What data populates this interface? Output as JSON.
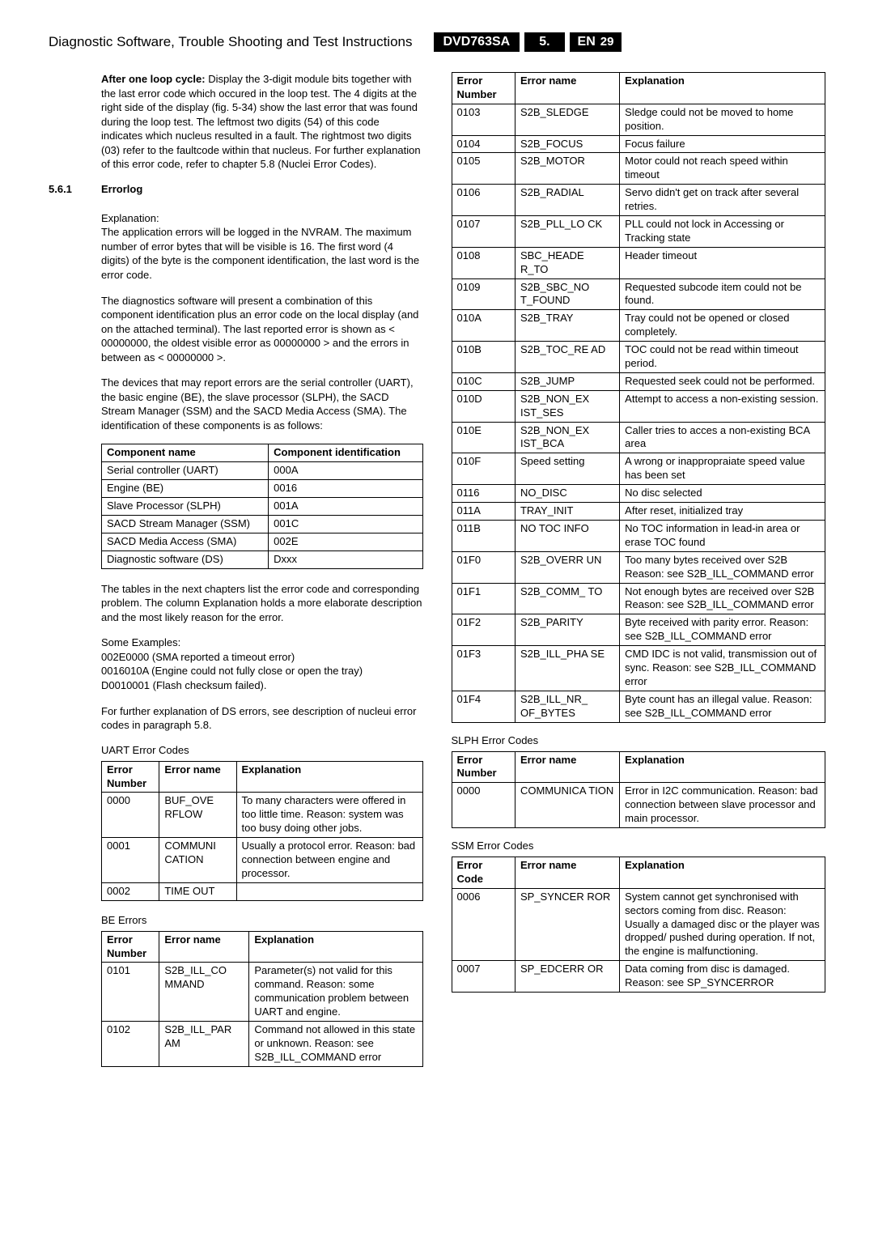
{
  "header": {
    "title": "Diagnostic Software, Trouble Shooting and Test Instructions",
    "model": "DVD763SA",
    "section": "5.",
    "lang": "EN",
    "page": "29"
  },
  "intro": {
    "lead": "After one loop cycle:",
    "text": " Display the 3-digit module bits together with the last error code which occured in the loop test. The 4 digits at the right side of the display (fig. 5-34) show the last error that was found during the loop test. The leftmost two digits (54) of this code indicates which nucleus resulted in a fault. The rightmost two digits (03) refer to the faultcode within that nucleus. For further explanation of this error code, refer to chapter 5.8 (Nuclei Error Codes)."
  },
  "errorlog": {
    "num": "5.6.1",
    "title": "Errorlog",
    "p1_label": "Explanation:",
    "p1": "The application errors will be logged in the NVRAM. The maximum number of error bytes that will be visible is 16. The first word (4 digits) of the byte is the component identification, the last word is the error code.",
    "p2": "The diagnostics software will present a combination of this component identification plus an error code on the local display (and on the attached terminal). The last reported error is shown as < 00000000, the oldest visible error as 00000000 > and the errors in between as < 00000000 >.",
    "p3": "The devices that may report errors are the serial controller (UART), the basic engine (BE), the slave processor (SLPH), the SACD Stream Manager (SSM) and the SACD Media Access (SMA). The identification of these components is as follows:"
  },
  "components": {
    "columns": [
      "Component name",
      "Component identification"
    ],
    "rows": [
      [
        "Serial controller (UART)",
        "000A"
      ],
      [
        "Engine (BE)",
        "0016"
      ],
      [
        "Slave Processor (SLPH)",
        "001A"
      ],
      [
        "SACD Stream Manager (SSM)",
        "001C"
      ],
      [
        "SACD Media Access (SMA)",
        "002E"
      ],
      [
        "Diagnostic software (DS)",
        "Dxxx"
      ]
    ]
  },
  "notes": {
    "p1": "The tables in the next chapters list the error code and corresponding problem. The column  Explanation  holds a more elaborate description and the most likely reason for the error.",
    "p2_label": "Some Examples:",
    "p2a": "002E0000 (SMA reported a timeout error)",
    "p2b": "0016010A (Engine could not fully close or open the tray)",
    "p2c": "D0010001 (Flash checksum failed).",
    "p3": "For further explanation of DS errors, see description of nucleui error codes in paragraph 5.8."
  },
  "uart": {
    "caption": "UART Error Codes",
    "columns": [
      "Error Number",
      "Error name",
      "Explanation"
    ],
    "rows": [
      [
        "0000",
        "BUF_OVE RFLOW",
        "To many characters were offered in too little time. Reason: system was too busy doing other jobs."
      ],
      [
        "0001",
        "COMMUNI CATION",
        "Usually a protocol error. Reason: bad connection between engine and processor."
      ],
      [
        "0002",
        "TIME OUT",
        ""
      ]
    ]
  },
  "be": {
    "caption": "BE Errors",
    "columns": [
      "Error Number",
      "Error name",
      "Explanation"
    ],
    "rows": [
      [
        "0101",
        "S2B_ILL_CO MMAND",
        "Parameter(s) not valid for this command. Reason: some communication problem between UART and engine."
      ],
      [
        "0102",
        "S2B_ILL_PAR AM",
        "Command not allowed in this state or unknown. Reason: see S2B_ILL_COMMAND error"
      ]
    ]
  },
  "be_cont": {
    "columns": [
      "Error Number",
      "Error name",
      "Explanation"
    ],
    "rows": [
      [
        "0103",
        "S2B_SLEDGE",
        "Sledge could not be moved to home position."
      ],
      [
        "0104",
        "S2B_FOCUS",
        "Focus failure"
      ],
      [
        "0105",
        "S2B_MOTOR",
        "Motor could not reach speed within timeout"
      ],
      [
        "0106",
        "S2B_RADIAL",
        "Servo didn't get on track after several retries."
      ],
      [
        "0107",
        "S2B_PLL_LO CK",
        "PLL could not lock in Accessing or Tracking state"
      ],
      [
        "0108",
        "SBC_HEADE R_TO",
        "Header timeout"
      ],
      [
        "0109",
        "S2B_SBC_NO T_FOUND",
        "Requested subcode item could not be found."
      ],
      [
        "010A",
        "S2B_TRAY",
        "Tray could not be opened or closed completely."
      ],
      [
        "010B",
        "S2B_TOC_RE AD",
        "TOC could not be read within timeout period."
      ],
      [
        "010C",
        "S2B_JUMP",
        "Requested seek could not be performed."
      ],
      [
        "010D",
        "S2B_NON_EX IST_SES",
        "Attempt to access a non-existing session."
      ],
      [
        "010E",
        "S2B_NON_EX IST_BCA",
        "Caller tries to acces a non-existing BCA area"
      ],
      [
        "010F",
        "Speed setting",
        "A wrong or inappropraiate speed value has been set"
      ],
      [
        "0116",
        "NO_DISC",
        "No disc selected"
      ],
      [
        "011A",
        "TRAY_INIT",
        "After reset, initialized tray"
      ],
      [
        "011B",
        "NO TOC INFO",
        "No TOC information in lead-in area or erase TOC found"
      ],
      [
        "01F0",
        "S2B_OVERR UN",
        "Too many bytes received over S2B Reason: see S2B_ILL_COMMAND error"
      ],
      [
        "01F1",
        "S2B_COMM_ TO",
        "Not enough bytes are received over S2B Reason: see S2B_ILL_COMMAND error"
      ],
      [
        "01F2",
        "S2B_PARITY",
        "Byte received with parity error. Reason: see S2B_ILL_COMMAND error"
      ],
      [
        "01F3",
        "S2B_ILL_PHA SE",
        "CMD IDC is not valid, transmission out of sync. Reason: see S2B_ILL_COMMAND error"
      ],
      [
        "01F4",
        "S2B_ILL_NR_ OF_BYTES",
        "Byte count has an illegal value. Reason: see S2B_ILL_COMMAND error"
      ]
    ]
  },
  "slph": {
    "caption": "SLPH Error Codes",
    "columns": [
      "Error Number",
      "Error name",
      "Explanation"
    ],
    "rows": [
      [
        "0000",
        "COMMUNICA TION",
        "Error in I2C communication. Reason: bad connection between slave processor and main processor."
      ]
    ]
  },
  "ssm": {
    "caption": "SSM Error Codes",
    "columns": [
      "Error Code",
      "Error name",
      "Explanation"
    ],
    "rows": [
      [
        "0006",
        "SP_SYNCER ROR",
        "System cannot get synchronised with sectors coming from disc. Reason: Usually a damaged disc or the player was dropped/ pushed during operation. If not, the engine is malfunctioning."
      ],
      [
        "0007",
        "SP_EDCERR OR",
        "Data coming from disc is damaged. Reason: see SP_SYNCERROR"
      ]
    ]
  }
}
